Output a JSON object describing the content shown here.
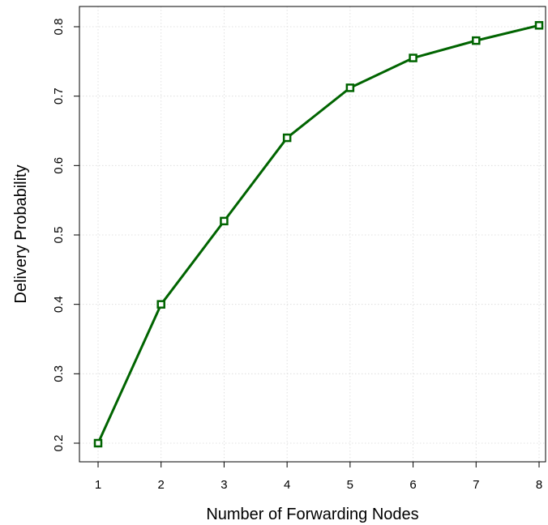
{
  "chart_data": {
    "type": "line",
    "title": "",
    "xlabel": "Number of Forwarding Nodes",
    "ylabel": "Delivery Probability",
    "x": [
      1,
      2,
      3,
      4,
      5,
      6,
      7,
      8
    ],
    "series": [
      {
        "values": [
          0.2,
          0.4,
          0.52,
          0.64,
          0.712,
          0.755,
          0.78,
          0.802
        ],
        "color": "#006400",
        "marker": "square-open"
      }
    ],
    "xlim": [
      1,
      8
    ],
    "ylim": [
      0.2,
      0.8
    ],
    "xticks": [
      "1",
      "2",
      "3",
      "4",
      "5",
      "6",
      "7",
      "8"
    ],
    "yticks": [
      "0.2",
      "0.3",
      "0.4",
      "0.5",
      "0.6",
      "0.7",
      "0.8"
    ],
    "grid": true,
    "legend": "none"
  }
}
